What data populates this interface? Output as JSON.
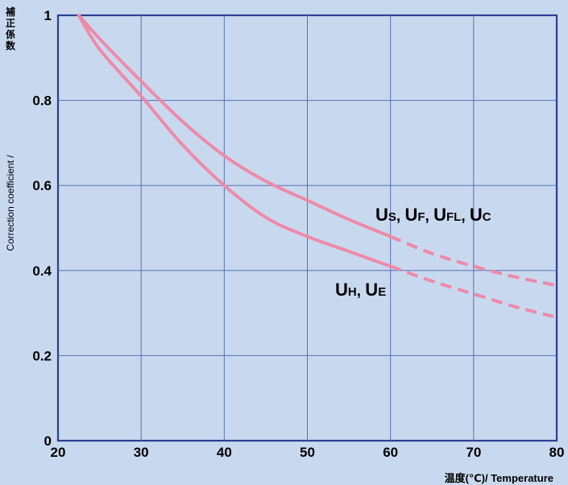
{
  "chart_data": {
    "type": "line",
    "xlabel": "温度(℃)/ Temperature",
    "ylabel_jp": "補正係数",
    "ylabel_en": "Correction coefficient /",
    "xlim": [
      20,
      80
    ],
    "ylim": [
      0,
      1
    ],
    "x_ticks": [
      "20",
      "30",
      "40",
      "50",
      "60",
      "70",
      "80"
    ],
    "y_ticks": [
      "0",
      "0.2",
      "0.4",
      "0.6",
      "0.8",
      "1"
    ],
    "grid": true,
    "line_color": "#ee8aa8",
    "series": [
      {
        "name": "Us, UF, UFL, Uc",
        "label_parts": [
          {
            "main": "U",
            "sub": "S"
          },
          {
            "sep": ", "
          },
          {
            "main": "U",
            "sub": "F"
          },
          {
            "sep": ", "
          },
          {
            "main": "U",
            "sub": "FL"
          },
          {
            "sep": ", "
          },
          {
            "main": "U",
            "sub": "C"
          }
        ],
        "solid": [
          [
            22.5,
            1.0
          ],
          [
            25,
            0.945
          ],
          [
            30,
            0.845
          ],
          [
            35,
            0.75
          ],
          [
            40,
            0.67
          ],
          [
            45,
            0.61
          ],
          [
            50,
            0.565
          ],
          [
            55,
            0.52
          ],
          [
            60,
            0.48
          ]
        ],
        "dashed": [
          [
            60,
            0.48
          ],
          [
            65,
            0.44
          ],
          [
            70,
            0.41
          ],
          [
            75,
            0.385
          ],
          [
            80,
            0.365
          ]
        ]
      },
      {
        "name": "UH, UE",
        "label_parts": [
          {
            "main": "U",
            "sub": "H"
          },
          {
            "sep": ", "
          },
          {
            "main": "U",
            "sub": "E"
          }
        ],
        "solid": [
          [
            22.5,
            1.0
          ],
          [
            25,
            0.92
          ],
          [
            30,
            0.81
          ],
          [
            35,
            0.695
          ],
          [
            40,
            0.6
          ],
          [
            45,
            0.525
          ],
          [
            50,
            0.48
          ],
          [
            55,
            0.445
          ],
          [
            60,
            0.41
          ]
        ],
        "dashed": [
          [
            60,
            0.41
          ],
          [
            65,
            0.375
          ],
          [
            70,
            0.345
          ],
          [
            75,
            0.315
          ],
          [
            80,
            0.29
          ]
        ]
      }
    ]
  }
}
